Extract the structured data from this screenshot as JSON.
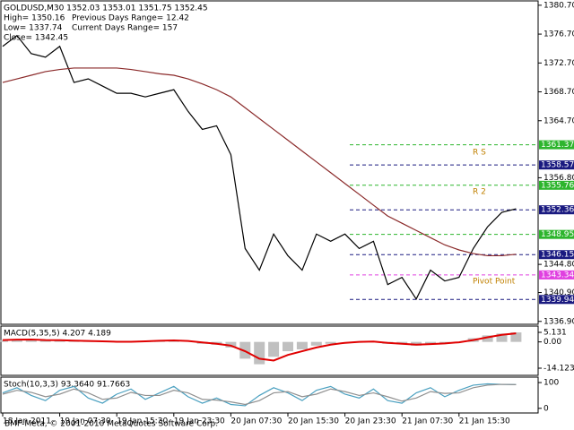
{
  "chart_data": [
    {
      "type": "line",
      "title": "GOLDUSD,M30  1352.03 1353.01 1351.75 1352.45",
      "info": [
        "High= 1350.16",
        "Previous Days Range= 12.42",
        "Low= 1337.74",
        "Current Days Range= 157",
        "Close= 1342.45"
      ],
      "categories": [
        "18 Jan 2011",
        null,
        null,
        null,
        "19 Jan 07:30",
        null,
        null,
        null,
        "19 Jan 15:30",
        null,
        null,
        null,
        "19 Jan 23:30",
        null,
        null,
        null,
        "20 Jan 07:30",
        null,
        null,
        null,
        "20 Jan 15:30",
        null,
        null,
        null,
        "20 Jan 23:30",
        null,
        null,
        null,
        "21 Jan 07:30",
        null,
        null,
        null,
        "21 Jan 15:30",
        null,
        null,
        null,
        null
      ],
      "series": [
        {
          "color": "#000000",
          "values": [
            1375,
            1376.5,
            1374,
            1373.5,
            1375,
            1370,
            1370.5,
            1369.5,
            1368.5,
            1368.5,
            1368,
            1368.5,
            1369,
            1366,
            1363.5,
            1364,
            1360,
            1347,
            1344,
            1349,
            1346,
            1344,
            1349,
            1348,
            1349,
            1347,
            1348,
            1342,
            1343,
            1340,
            1344,
            1342.5,
            1343,
            1347,
            1350,
            1352,
            1352.5
          ]
        },
        {
          "color": "#8b2a2a",
          "values": [
            1370,
            1370.5,
            1371,
            1371.5,
            1371.8,
            1372,
            1372,
            1372,
            1372,
            1371.8,
            1371.5,
            1371.2,
            1371,
            1370.5,
            1369.8,
            1369,
            1368,
            1366.5,
            1365,
            1363.5,
            1362,
            1360.5,
            1359,
            1357.5,
            1356,
            1354.5,
            1353,
            1351.5,
            1350.5,
            1349.5,
            1348.5,
            1347.5,
            1346.8,
            1346.3,
            1346,
            1346,
            1346.2
          ]
        }
      ],
      "ylim": [
        1336.5,
        1381.3
      ],
      "yticks": [
        {
          "value": 1380.7,
          "label": "1380.70"
        },
        {
          "value": 1376.7,
          "label": "1376.70"
        },
        {
          "value": 1372.7,
          "label": "1372.70"
        },
        {
          "value": 1368.7,
          "label": "1368.70"
        },
        {
          "value": 1364.7,
          "label": "1364.70"
        },
        {
          "value": 1356.8,
          "label": "1356.80"
        },
        {
          "value": 1344.8,
          "label": "1344.80"
        },
        {
          "value": 1340.9,
          "label": "1340.90"
        },
        {
          "value": 1336.9,
          "label": "1336.90"
        }
      ],
      "levels": [
        {
          "value": 1361.37,
          "color": "#2db52d"
        },
        {
          "value": 1358.57,
          "color": "#1a1a80"
        },
        {
          "value": 1355.76,
          "color": "#2db52d"
        },
        {
          "value": 1352.36,
          "color": "#1a1a80"
        },
        {
          "value": 1348.95,
          "color": "#2db52d"
        },
        {
          "value": 1346.15,
          "color": "#1a1a80"
        },
        {
          "value": 1343.34,
          "color": "#e040e0"
        },
        {
          "value": 1339.94,
          "color": "#1a1a80"
        }
      ],
      "annotations": [
        "R S",
        "R 2",
        "Pivot Point"
      ]
    },
    {
      "type": "bar",
      "title": "MACD(5,35,5) 4.207 4.189",
      "series": [
        {
          "color": "#c0c0c0",
          "values": [
            1,
            1.5,
            1.2,
            0.8,
            1,
            0.5,
            0.3,
            0.2,
            0,
            0.2,
            0.5,
            0.8,
            1,
            0,
            -1,
            -1.5,
            -3,
            -9,
            -12,
            -8,
            -5,
            -4,
            -2,
            -1,
            0,
            0,
            0.3,
            -1,
            -1.2,
            -2,
            -1,
            -0.5,
            0,
            2,
            3.5,
            4.5,
            5.1
          ]
        },
        {
          "color": "#e00000",
          "values": [
            1,
            1.2,
            1.3,
            1,
            0.9,
            0.7,
            0.5,
            0.3,
            0.1,
            0.1,
            0.3,
            0.6,
            0.8,
            0.5,
            -0.3,
            -1,
            -2,
            -5,
            -9,
            -10,
            -7,
            -5,
            -3,
            -1.5,
            -0.5,
            0,
            0.2,
            -0.5,
            -1,
            -1.5,
            -1.2,
            -0.8,
            -0.2,
            1,
            2.5,
            3.8,
            4.6
          ]
        }
      ],
      "ylim": [
        -17.97,
        8.5
      ],
      "yticks": [
        5.131,
        {
          "value": 0,
          "label": "0.00"
        },
        -14.123
      ]
    },
    {
      "type": "line",
      "title": "Stoch(10,3,3) 93.3640 91.7663",
      "series": [
        {
          "color": "#4aa0c0",
          "values": [
            60,
            80,
            50,
            30,
            70,
            85,
            40,
            20,
            55,
            75,
            35,
            60,
            85,
            45,
            20,
            40,
            15,
            10,
            50,
            80,
            60,
            30,
            70,
            85,
            55,
            40,
            75,
            30,
            20,
            60,
            80,
            45,
            70,
            90,
            95,
            93,
            92
          ]
        },
        {
          "color": "#909090",
          "values": [
            55,
            70,
            62,
            45,
            55,
            75,
            60,
            35,
            40,
            62,
            50,
            50,
            70,
            60,
            35,
            32,
            25,
            15,
            30,
            60,
            65,
            45,
            55,
            75,
            65,
            50,
            60,
            45,
            28,
            40,
            65,
            58,
            60,
            80,
            90,
            93,
            92
          ]
        }
      ],
      "ylim": [
        -18,
        121
      ],
      "yticks": [
        100,
        0
      ]
    }
  ],
  "footer": "BMF-Meta, © 2001-2010 MetaQuotes Software Corp."
}
